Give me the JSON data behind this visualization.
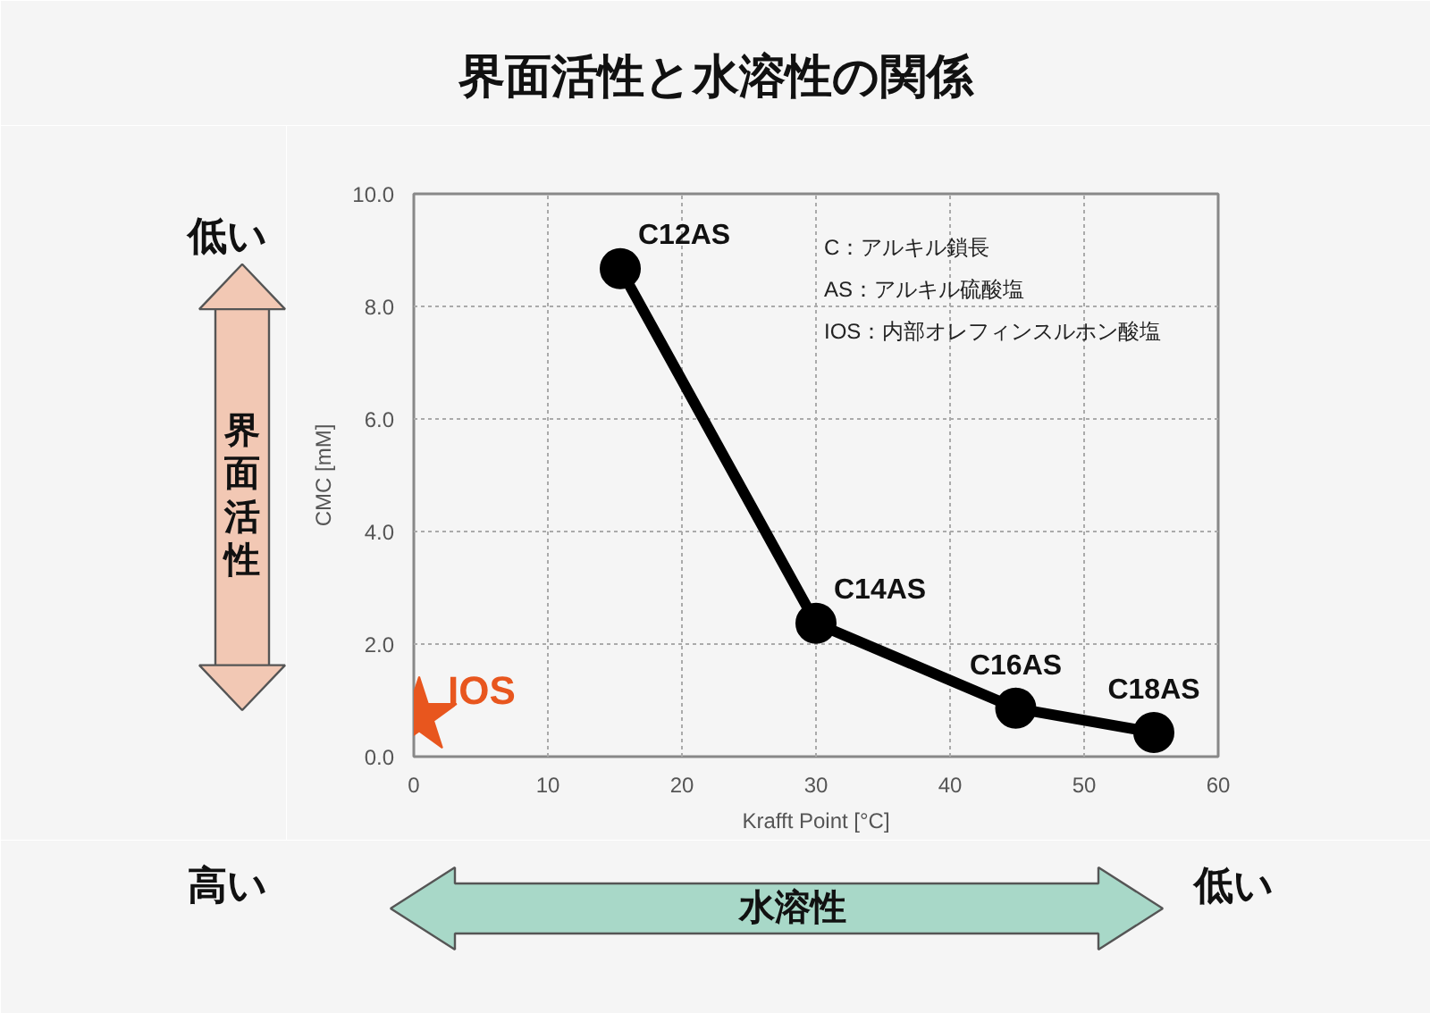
{
  "chart_data": {
    "type": "line",
    "title": "界面活性と水溶性の関係",
    "xlabel": "Krafft Point [°C]",
    "ylabel": "CMC [mM]",
    "xlim": [
      0,
      60
    ],
    "xticks": [
      0,
      10,
      20,
      30,
      40,
      50,
      60
    ],
    "ylim": [
      0,
      10
    ],
    "yticks": [
      {
        "value": 0,
        "label": "0.0"
      },
      {
        "value": 2,
        "label": "2.0"
      },
      {
        "value": 4,
        "label": "4.0"
      },
      {
        "value": 6,
        "label": "6.0"
      },
      {
        "value": 8,
        "label": "8.0"
      },
      {
        "value": 10,
        "label": "10.0"
      }
    ],
    "grid": true,
    "legend": false,
    "line_style": "solid",
    "series": [
      {
        "type": "line",
        "color": "#000000",
        "marker": "circle",
        "x": [
          15.4,
          30.0,
          44.9,
          55.2
        ],
        "values": [
          8.67,
          2.37,
          0.86,
          0.43
        ]
      },
      {
        "type": "scatter",
        "name": "IOS",
        "color": "#e8561e",
        "marker": "star",
        "x": [
          0.4
        ],
        "values": [
          0.72
        ]
      }
    ],
    "annotations": [
      {
        "text": "C12AS",
        "x": 15.4,
        "y": 8.67
      },
      {
        "text": "C14AS",
        "x": 30.0,
        "y": 2.37
      },
      {
        "text": "C16AS",
        "x": 44.9,
        "y": 0.86
      },
      {
        "text": "C18AS",
        "x": 55.2,
        "y": 0.43
      },
      "C：アルキル鎖長",
      "AS：アルキル硫酸塩",
      "IOS：内部オレフィンスルホン酸塩",
      "低い",
      "界面活性",
      "高い",
      "水溶性",
      "低い"
    ]
  }
}
